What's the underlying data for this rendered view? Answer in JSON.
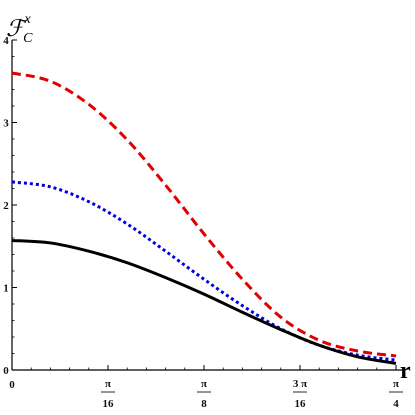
{
  "chart_data": {
    "type": "line",
    "ylabel": {
      "main": "ℱ",
      "sub": "C",
      "sup": "x"
    },
    "xlabel": "r",
    "xlim": [
      0,
      0.7853981634
    ],
    "ylim": [
      0,
      4
    ],
    "yticks": [
      {
        "value": 0,
        "label": "0"
      },
      {
        "value": 1,
        "label": "1"
      },
      {
        "value": 2,
        "label": "2"
      },
      {
        "value": 3,
        "label": "3"
      },
      {
        "value": 4,
        "label": "4"
      }
    ],
    "xticks": [
      {
        "value": 0,
        "label": "0"
      },
      {
        "value": 0.1963495408,
        "num": "π",
        "den": "16"
      },
      {
        "value": 0.3926990817,
        "num": "π",
        "den": "8"
      },
      {
        "value": 0.5890486225,
        "num": "3 π",
        "den": "16"
      },
      {
        "value": 0.7853981634,
        "num": "π",
        "den": "4"
      }
    ],
    "series": [
      {
        "color": "#e00000",
        "style": "dashed",
        "x": [
          0,
          0.0785,
          0.1571,
          0.2356,
          0.3142,
          0.3927,
          0.4712,
          0.5498,
          0.6283,
          0.7069,
          0.7854
        ],
        "values": [
          3.6,
          3.5,
          3.22,
          2.79,
          2.24,
          1.65,
          1.1,
          0.64,
          0.36,
          0.23,
          0.17
        ]
      },
      {
        "color": "#0000e0",
        "style": "dotted",
        "x": [
          0,
          0.0785,
          0.1571,
          0.2356,
          0.3142,
          0.3927,
          0.4712,
          0.5498,
          0.6283,
          0.7069,
          0.7854
        ],
        "values": [
          2.28,
          2.22,
          2.04,
          1.77,
          1.44,
          1.1,
          0.78,
          0.5,
          0.3,
          0.18,
          0.12
        ]
      },
      {
        "color": "#000000",
        "style": "solid",
        "x": [
          0,
          0.0785,
          0.1571,
          0.2356,
          0.3142,
          0.3927,
          0.4712,
          0.5498,
          0.6283,
          0.7069,
          0.7854
        ],
        "values": [
          1.57,
          1.54,
          1.44,
          1.3,
          1.12,
          0.92,
          0.7,
          0.49,
          0.3,
          0.16,
          0.08
        ]
      }
    ]
  }
}
